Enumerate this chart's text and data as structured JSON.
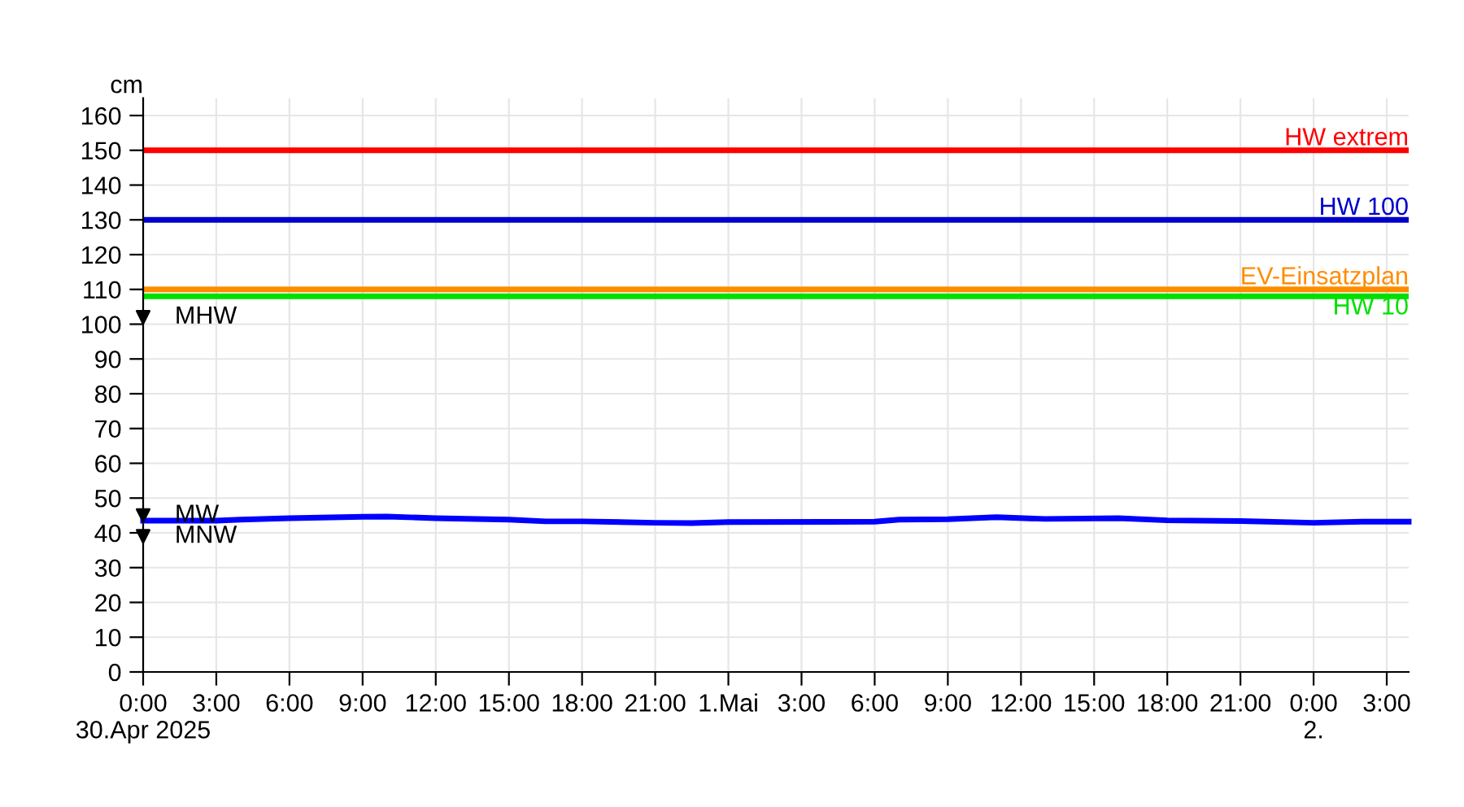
{
  "chart_data": {
    "type": "line",
    "ylabel": "cm",
    "xlim": [
      "2025-04-30T00:00",
      "2025-05-02T03:54"
    ],
    "ylim": [
      0,
      165
    ],
    "xticks": [
      {
        "value": "2025-04-30T00:00",
        "label": "0:00\n30.Apr 2025"
      },
      {
        "value": "2025-04-30T03:00",
        "label": "3:00"
      },
      {
        "value": "2025-04-30T06:00",
        "label": "6:00"
      },
      {
        "value": "2025-04-30T09:00",
        "label": "9:00"
      },
      {
        "value": "2025-04-30T12:00",
        "label": "12:00"
      },
      {
        "value": "2025-04-30T15:00",
        "label": "15:00"
      },
      {
        "value": "2025-04-30T18:00",
        "label": "18:00"
      },
      {
        "value": "2025-04-30T21:00",
        "label": "21:00"
      },
      {
        "value": "2025-05-01T00:00",
        "label": "1.Mai"
      },
      {
        "value": "2025-05-01T03:00",
        "label": "3:00"
      },
      {
        "value": "2025-05-01T06:00",
        "label": "6:00"
      },
      {
        "value": "2025-05-01T09:00",
        "label": "9:00"
      },
      {
        "value": "2025-05-01T12:00",
        "label": "12:00"
      },
      {
        "value": "2025-05-01T15:00",
        "label": "15:00"
      },
      {
        "value": "2025-05-01T18:00",
        "label": "18:00"
      },
      {
        "value": "2025-05-01T21:00",
        "label": "21:00"
      },
      {
        "value": "2025-05-02T00:00",
        "label": "0:00\n2."
      },
      {
        "value": "2025-05-02T03:00",
        "label": "3:00"
      }
    ],
    "yticks": [
      0,
      10,
      20,
      30,
      40,
      50,
      60,
      70,
      80,
      90,
      100,
      110,
      120,
      130,
      140,
      150,
      160
    ],
    "grid": true,
    "series": [
      {
        "color": "#0000ff",
        "x": [
          "2025-04-30T00:00",
          "2025-04-30T03:00",
          "2025-04-30T04:00",
          "2025-04-30T06:00",
          "2025-04-30T09:00",
          "2025-04-30T10:00",
          "2025-04-30T12:00",
          "2025-04-30T15:00",
          "2025-04-30T16:30",
          "2025-04-30T18:00",
          "2025-04-30T21:00",
          "2025-04-30T22:30",
          "2025-05-01T00:00",
          "2025-05-01T06:00",
          "2025-05-01T07:00",
          "2025-05-01T09:00",
          "2025-05-01T11:00",
          "2025-05-01T13:00",
          "2025-05-01T16:00",
          "2025-05-01T18:00",
          "2025-05-01T21:00",
          "2025-05-02T00:00",
          "2025-05-02T02:00",
          "2025-05-02T03:54"
        ],
        "values": [
          43.5,
          43.5,
          43.8,
          44.2,
          44.6,
          44.7,
          44.2,
          43.8,
          43.3,
          43.3,
          42.9,
          42.8,
          43.1,
          43.2,
          43.8,
          43.9,
          44.5,
          44.0,
          44.2,
          43.6,
          43.4,
          42.9,
          43.2,
          43.2
        ]
      },
      {
        "type": "scatter",
        "name": "MHW",
        "color": "#000000",
        "marker": "triangle",
        "x": [
          "2025-04-30T00:00"
        ],
        "values": [
          102
        ]
      },
      {
        "type": "scatter",
        "name": "MW",
        "color": "#000000",
        "marker": "triangle",
        "x": [
          "2025-04-30T00:00"
        ],
        "values": [
          45
        ]
      },
      {
        "type": "scatter",
        "name": "MNW",
        "color": "#000000",
        "marker": "triangle",
        "x": [
          "2025-04-30T00:00"
        ],
        "values": [
          39
        ]
      }
    ],
    "ref_lines": [
      {
        "axis": "y",
        "value": 150,
        "label": "HW extrem",
        "color": "#ff0000"
      },
      {
        "axis": "y",
        "value": 130,
        "label": "HW 100",
        "color": "#0000cc"
      },
      {
        "axis": "y",
        "value": 110,
        "label": "EV-Einsatzplan",
        "color": "#ff8c00"
      },
      {
        "axis": "y",
        "value": 108,
        "label": "HW 10",
        "color": "#00e000"
      }
    ]
  }
}
